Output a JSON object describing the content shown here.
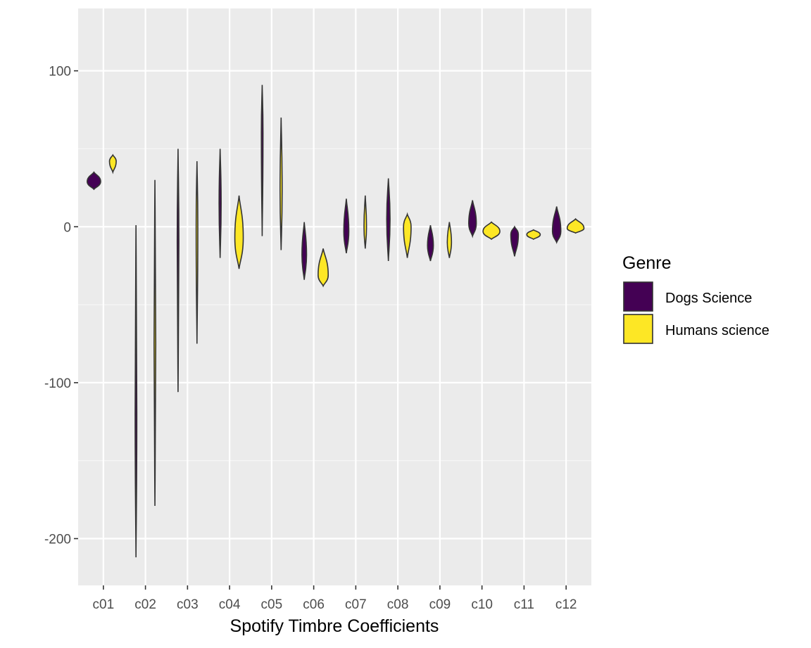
{
  "chart_data": {
    "type": "violin",
    "title": "",
    "xlabel": "Spotify Timbre Coefficients",
    "ylabel": "",
    "ylim": [
      -230,
      140
    ],
    "y_ticks": [
      100,
      0,
      -100,
      -200
    ],
    "y_tick_labels": [
      "100",
      "0",
      "-100",
      "-200"
    ],
    "categories": [
      "c01",
      "c02",
      "c03",
      "c04",
      "c05",
      "c06",
      "c07",
      "c08",
      "c09",
      "c10",
      "c11",
      "c12"
    ],
    "grid": true,
    "legend": {
      "title": "Genre",
      "position": "right"
    },
    "series": [
      {
        "name": "Dogs Science",
        "color": "#440154",
        "values": [
          {
            "min": 24,
            "max": 35,
            "center": 29,
            "half_width": 0.16
          },
          {
            "min": -212,
            "max": 1,
            "center": -120,
            "half_width": 0.015
          },
          {
            "min": -106,
            "max": 50,
            "center": -10,
            "half_width": 0.01
          },
          {
            "min": -20,
            "max": 50,
            "center": 15,
            "half_width": 0.025
          },
          {
            "min": -6,
            "max": 91,
            "center": 60,
            "half_width": 0.02
          },
          {
            "min": -34,
            "max": 3,
            "center": -18,
            "half_width": 0.055
          },
          {
            "min": -17,
            "max": 18,
            "center": -3,
            "half_width": 0.06
          },
          {
            "min": -22,
            "max": 31,
            "center": 5,
            "half_width": 0.04
          },
          {
            "min": -22,
            "max": 1,
            "center": -12,
            "half_width": 0.07
          },
          {
            "min": -6,
            "max": 17,
            "center": 2,
            "half_width": 0.09
          },
          {
            "min": -19,
            "max": 0,
            "center": -5,
            "half_width": 0.09
          },
          {
            "min": -10,
            "max": 13,
            "center": -3,
            "half_width": 0.1
          }
        ]
      },
      {
        "name": "Humans science",
        "color": "#fde725",
        "values": [
          {
            "min": 35,
            "max": 46,
            "center": 42,
            "half_width": 0.08
          },
          {
            "min": -179,
            "max": 30,
            "center": -75,
            "half_width": 0.01
          },
          {
            "min": -75,
            "max": 42,
            "center": 0,
            "half_width": 0.01
          },
          {
            "min": -27,
            "max": 20,
            "center": -7,
            "half_width": 0.1
          },
          {
            "min": -15,
            "max": 70,
            "center": 23,
            "half_width": 0.025
          },
          {
            "min": -38,
            "max": -14,
            "center": -31,
            "half_width": 0.12
          },
          {
            "min": -14,
            "max": 20,
            "center": 0,
            "half_width": 0.03
          },
          {
            "min": -20,
            "max": 8,
            "center": 0,
            "half_width": 0.09
          },
          {
            "min": -20,
            "max": 3,
            "center": -10,
            "half_width": 0.05
          },
          {
            "min": -8,
            "max": 3,
            "center": -3,
            "half_width": 0.2
          },
          {
            "min": -8,
            "max": -2,
            "center": -5,
            "half_width": 0.16
          },
          {
            "min": -4,
            "max": 5,
            "center": -1,
            "half_width": 0.2
          }
        ]
      }
    ]
  }
}
